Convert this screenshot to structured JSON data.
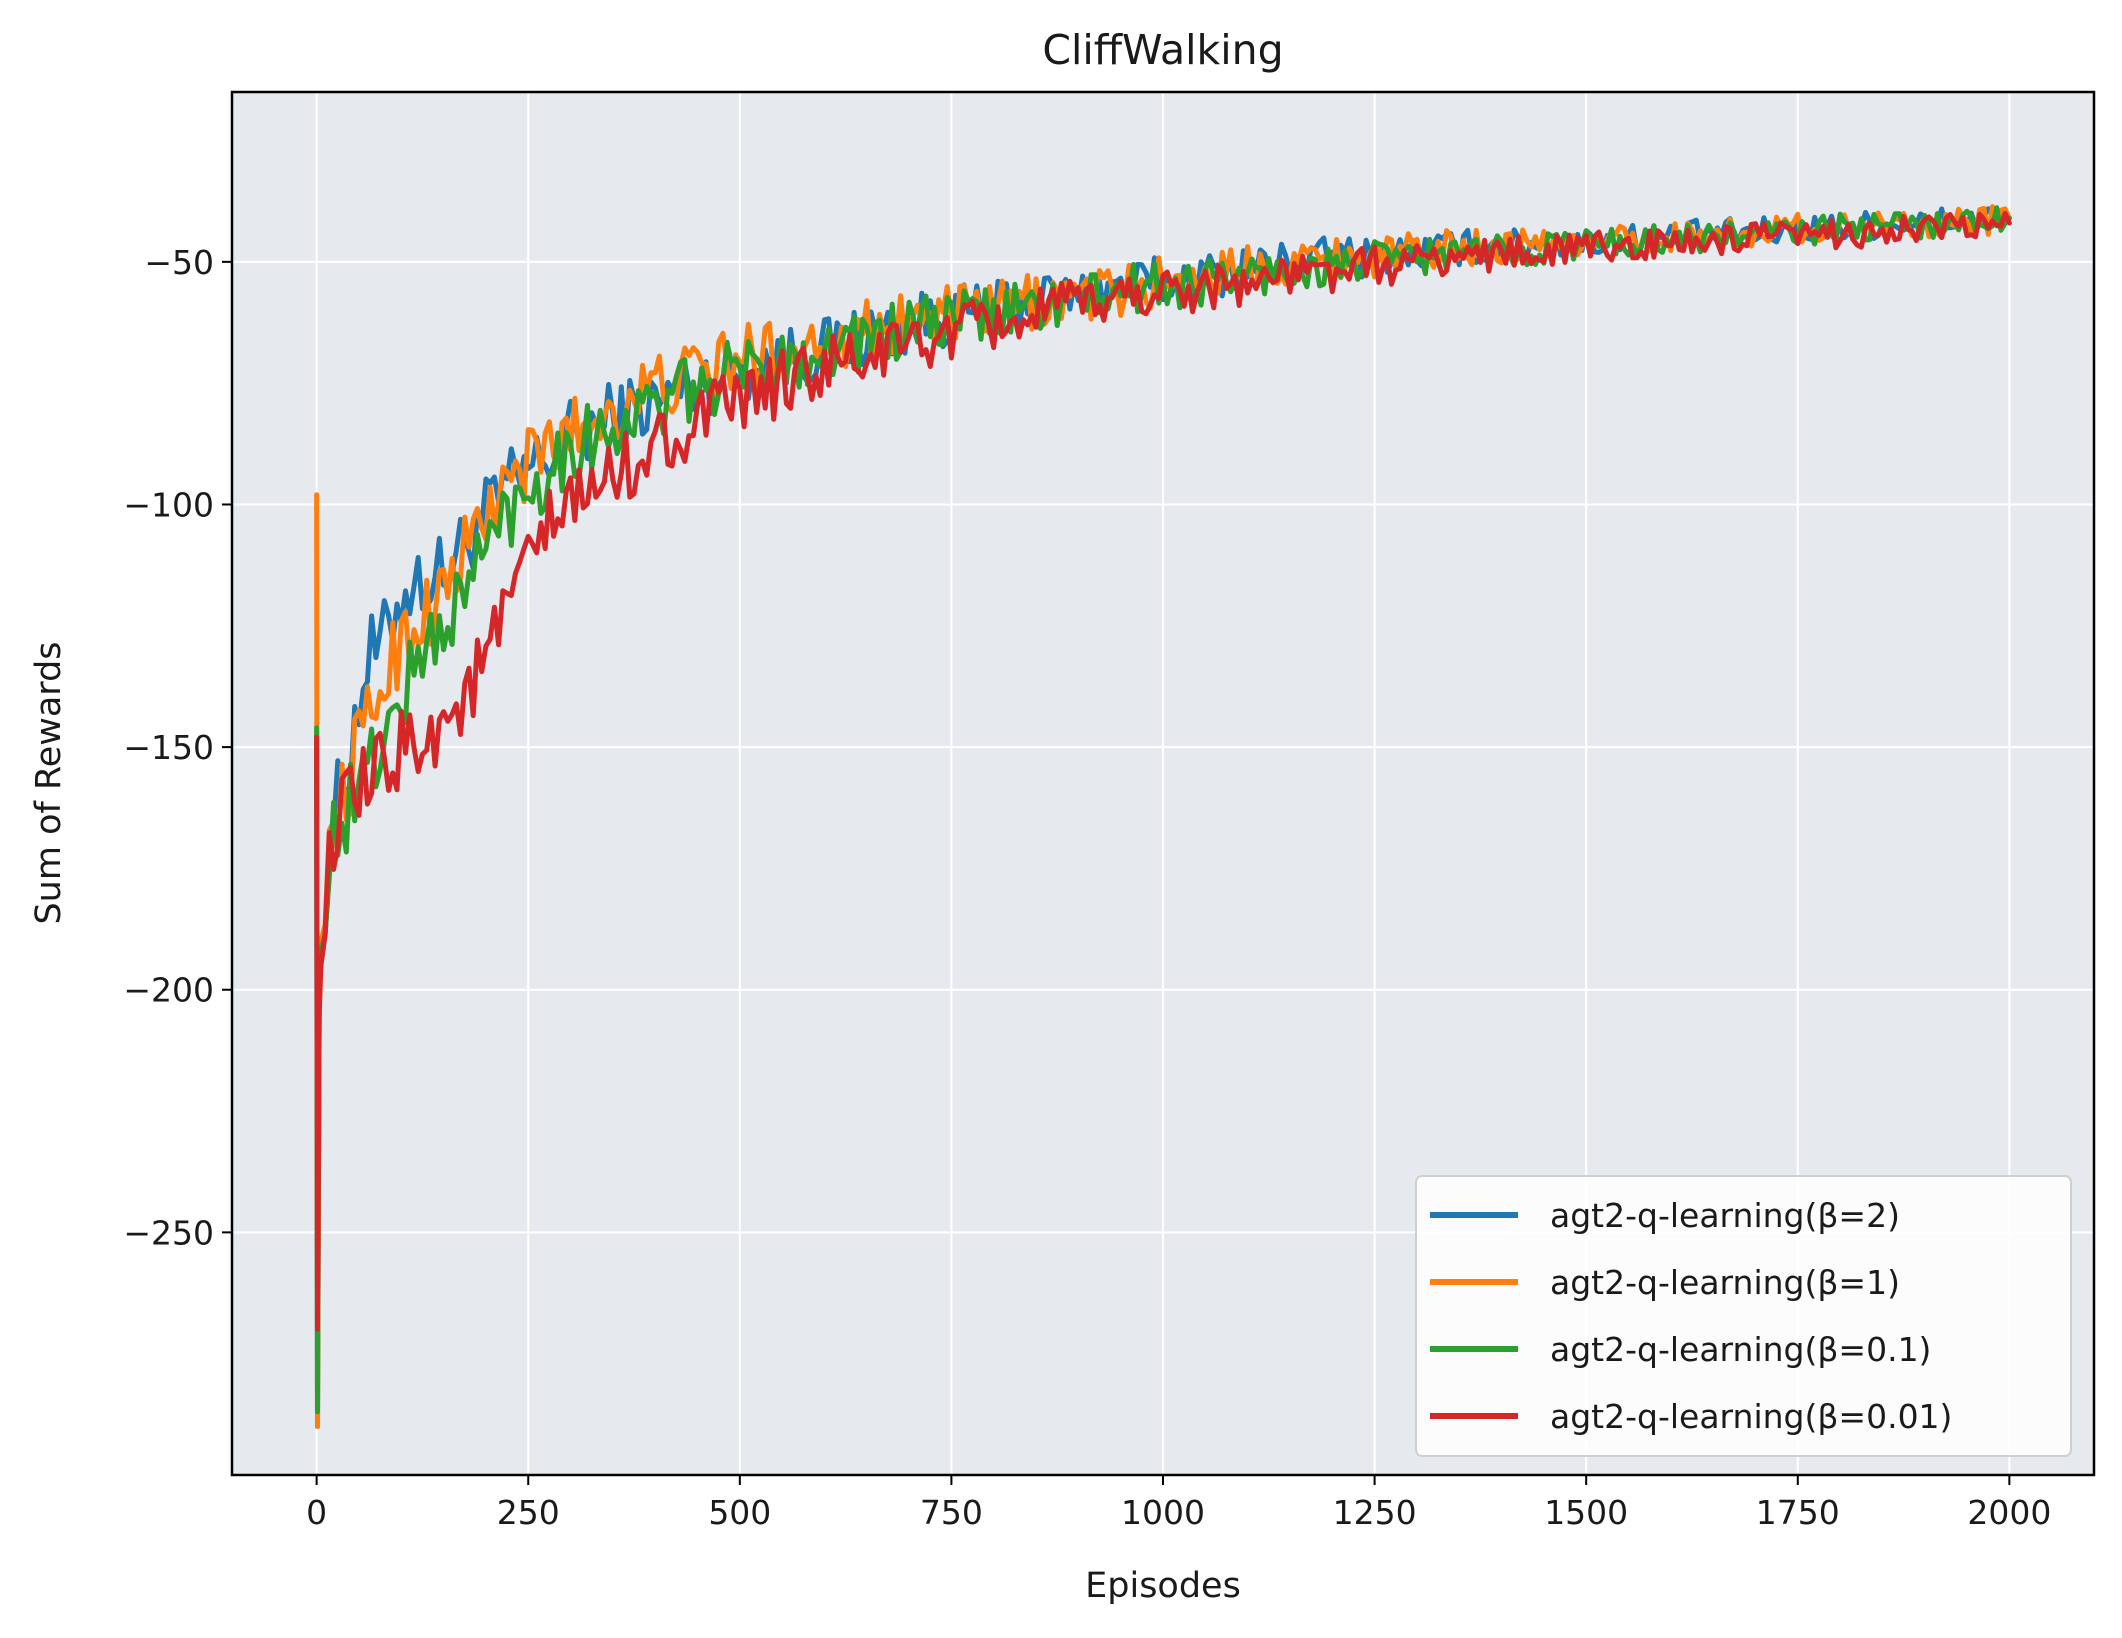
{
  "chart_data": {
    "type": "line",
    "title": "CliffWalking",
    "xlabel": "Episodes",
    "ylabel": "Sum of Rewards",
    "xlim": [
      -100,
      2100
    ],
    "ylim": [
      -300,
      -15
    ],
    "xticks": [
      0,
      250,
      500,
      750,
      1000,
      1250,
      1500,
      1750,
      2000
    ],
    "xtick_labels": [
      "0",
      "250",
      "500",
      "750",
      "1000",
      "1250",
      "1500",
      "1750",
      "2000"
    ],
    "yticks": [
      -250,
      -200,
      -150,
      -100,
      -50
    ],
    "ytick_labels": [
      "−250",
      "−200",
      "−150",
      "−100",
      "−50"
    ],
    "grid": true,
    "background": "#e6e9ee",
    "legend_position": "lower-right",
    "series": [
      {
        "name": "agt2-q-learning(β=2)",
        "color": "#1f77b4",
        "x": [
          0,
          1,
          3,
          5,
          10,
          20,
          40,
          60,
          80,
          100,
          120,
          150,
          175,
          200,
          225,
          250,
          275,
          300,
          350,
          400,
          450,
          500,
          550,
          600,
          650,
          700,
          750,
          800,
          850,
          900,
          950,
          1000,
          1050,
          1100,
          1150,
          1200,
          1250,
          1300,
          1350,
          1400,
          1450,
          1500,
          1550,
          1600,
          1650,
          1700,
          1750,
          1800,
          1850,
          1900,
          1950,
          2000
        ],
        "y": [
          -150,
          -290,
          -200,
          -195,
          -180,
          -165,
          -150,
          -132,
          -128,
          -118,
          -116,
          -114,
          -108,
          -102,
          -97,
          -93,
          -90,
          -86,
          -82,
          -79,
          -75,
          -72,
          -70,
          -68,
          -65,
          -63,
          -61,
          -60,
          -58,
          -57,
          -55,
          -54,
          -53,
          -51,
          -50,
          -49,
          -49,
          -48,
          -47,
          -47,
          -46,
          -46,
          -45,
          -45,
          -44,
          -44,
          -43,
          -43,
          -42,
          -42,
          -41,
          -41
        ]
      },
      {
        "name": "agt2-q-learning(β=1)",
        "color": "#ff7f0e",
        "x": [
          0,
          1,
          3,
          5,
          10,
          20,
          40,
          60,
          80,
          100,
          120,
          150,
          175,
          200,
          225,
          250,
          275,
          300,
          350,
          400,
          450,
          500,
          550,
          600,
          650,
          700,
          750,
          800,
          850,
          900,
          950,
          1000,
          1050,
          1100,
          1150,
          1200,
          1250,
          1300,
          1350,
          1400,
          1450,
          1500,
          1550,
          1600,
          1650,
          1700,
          1750,
          1800,
          1850,
          1900,
          1950,
          2000
        ],
        "y": [
          -98,
          -290,
          -205,
          -190,
          -178,
          -168,
          -155,
          -145,
          -135,
          -128,
          -124,
          -118,
          -110,
          -102,
          -96,
          -92,
          -88,
          -85,
          -80,
          -76,
          -73,
          -70,
          -68,
          -66,
          -64,
          -62,
          -61,
          -60,
          -58,
          -57,
          -56,
          -54,
          -53,
          -51,
          -50,
          -49,
          -49,
          -48,
          -47,
          -47,
          -46,
          -46,
          -45,
          -45,
          -44,
          -44,
          -43,
          -43,
          -42,
          -42,
          -42,
          -41
        ]
      },
      {
        "name": "agt2-q-learning(β=0.1)",
        "color": "#2ca02c",
        "x": [
          0,
          1,
          3,
          5,
          10,
          20,
          40,
          60,
          80,
          100,
          120,
          150,
          175,
          200,
          225,
          250,
          275,
          300,
          350,
          400,
          450,
          500,
          550,
          600,
          650,
          700,
          750,
          800,
          850,
          900,
          950,
          1000,
          1050,
          1100,
          1150,
          1200,
          1250,
          1300,
          1350,
          1400,
          1450,
          1500,
          1550,
          1600,
          1650,
          1700,
          1750,
          1800,
          1850,
          1900,
          1950,
          2000
        ],
        "y": [
          -146,
          -287,
          -200,
          -192,
          -180,
          -168,
          -162,
          -155,
          -148,
          -140,
          -132,
          -125,
          -118,
          -108,
          -102,
          -97,
          -92,
          -88,
          -84,
          -80,
          -76,
          -73,
          -70,
          -68,
          -66,
          -64,
          -62,
          -61,
          -59,
          -58,
          -56,
          -55,
          -54,
          -53,
          -52,
          -51,
          -50,
          -49,
          -48,
          -48,
          -47,
          -46,
          -46,
          -45,
          -45,
          -44,
          -44,
          -43,
          -43,
          -42,
          -42,
          -41
        ]
      },
      {
        "name": "agt2-q-learning(β=0.01)",
        "color": "#d62728",
        "x": [
          0,
          1,
          3,
          5,
          10,
          20,
          40,
          60,
          80,
          100,
          120,
          150,
          175,
          200,
          225,
          250,
          275,
          300,
          350,
          400,
          450,
          500,
          550,
          600,
          650,
          700,
          750,
          800,
          850,
          900,
          950,
          1000,
          1050,
          1100,
          1150,
          1200,
          1250,
          1300,
          1350,
          1400,
          1450,
          1500,
          1550,
          1600,
          1650,
          1700,
          1750,
          1800,
          1850,
          1900,
          1950,
          2000
        ],
        "y": [
          -148,
          -270,
          -205,
          -195,
          -180,
          -168,
          -162,
          -158,
          -155,
          -150,
          -148,
          -145,
          -140,
          -132,
          -122,
          -112,
          -105,
          -100,
          -94,
          -88,
          -83,
          -79,
          -75,
          -72,
          -70,
          -67,
          -65,
          -63,
          -61,
          -59,
          -57,
          -56,
          -55,
          -54,
          -53,
          -52,
          -51,
          -50,
          -49,
          -48,
          -48,
          -47,
          -47,
          -46,
          -46,
          -45,
          -45,
          -44,
          -44,
          -43,
          -43,
          -42
        ]
      }
    ]
  }
}
